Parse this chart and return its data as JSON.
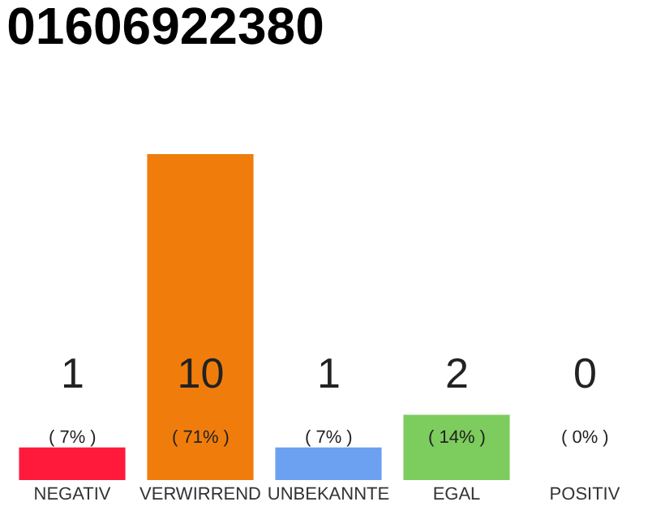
{
  "chart_data": {
    "type": "bar",
    "title": "01606922380",
    "categories": [
      "NEGATIV",
      "VERWIRREND",
      "UNBEKANNTE",
      "EGAL",
      "POSITIV"
    ],
    "values": [
      1,
      10,
      1,
      2,
      0
    ],
    "colors": [
      "#ff1a3c",
      "#f07d0b",
      "#6ca0f0",
      "#7dcc5e",
      "#eeeeee"
    ],
    "value_labels": [
      "1\n( 7% )",
      "10\n( 71% )",
      "1\n( 7% )",
      "2\n( 14% )",
      "0\n( 0% )"
    ],
    "tick_labels": "x"
  }
}
